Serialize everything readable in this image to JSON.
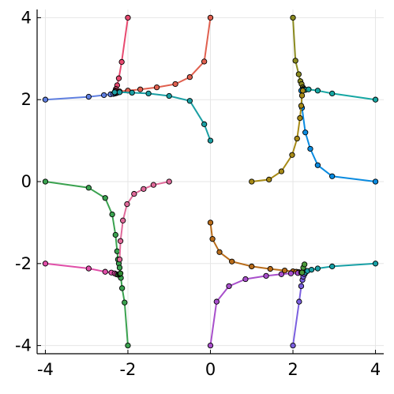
{
  "chart_data": {
    "type": "line",
    "title": "",
    "xlabel": "",
    "ylabel": "",
    "xlim": [
      -4.2,
      4.2
    ],
    "ylim": [
      -4.2,
      4.2
    ],
    "grid": true,
    "legend": "none",
    "x_ticks": [
      -4,
      -2,
      0,
      2,
      4
    ],
    "y_ticks": [
      -4,
      -2,
      0,
      2,
      4
    ],
    "x_tick_labels": [
      "-4",
      "-2",
      "0",
      "2",
      "4"
    ],
    "y_tick_labels": [
      "-4",
      "-2",
      "0",
      "2",
      "4"
    ],
    "series": [
      {
        "color": "#5f7fe0",
        "x": [
          -4.0,
          -2.95,
          -2.58,
          -2.42,
          -2.35,
          -2.31,
          -2.28,
          -2.26
        ],
        "y": [
          2.0,
          2.07,
          2.11,
          2.13,
          2.14,
          2.15,
          2.16,
          2.17
        ]
      },
      {
        "color": "#e0604f",
        "x": [
          -2.26,
          -2.25,
          -2.2,
          -2.0,
          -1.7,
          -1.3,
          -0.85,
          -0.5,
          -0.15,
          0.0
        ],
        "y": [
          2.17,
          2.18,
          2.2,
          2.22,
          2.25,
          2.3,
          2.38,
          2.55,
          2.93,
          4.0
        ]
      },
      {
        "color": "#e84a70",
        "x": [
          -2.0,
          -2.15,
          -2.22,
          -2.26,
          -2.29,
          -2.3,
          -2.31,
          -2.32
        ],
        "y": [
          4.0,
          2.92,
          2.52,
          2.35,
          2.26,
          2.22,
          2.2,
          2.18
        ]
      },
      {
        "color": "#1b9fa3",
        "x": [
          -2.32,
          -2.2,
          -1.9,
          -1.5,
          -1.0,
          -0.5,
          -0.15,
          0.0
        ],
        "y": [
          2.18,
          2.18,
          2.17,
          2.15,
          2.09,
          1.97,
          1.4,
          1.0
        ]
      },
      {
        "color": "#8a8a1f",
        "x": [
          2.0,
          2.06,
          2.14,
          2.18,
          2.21,
          2.24,
          2.26,
          2.28,
          2.3
        ],
        "y": [
          4.0,
          2.95,
          2.62,
          2.45,
          2.38,
          2.3,
          2.27,
          2.25,
          2.24
        ]
      },
      {
        "color": "#16a7a3",
        "x": [
          2.3,
          2.38,
          2.6,
          2.95,
          4.0
        ],
        "y": [
          2.24,
          2.25,
          2.22,
          2.15,
          2.0
        ]
      },
      {
        "color": "#0a8be0",
        "x": [
          2.22,
          2.2,
          2.22,
          2.3,
          2.42,
          2.6,
          2.95,
          4.0
        ],
        "y": [
          2.24,
          2.22,
          1.8,
          1.2,
          0.8,
          0.4,
          0.13,
          0.0
        ]
      },
      {
        "color": "#a78a16",
        "x": [
          2.24,
          2.22,
          2.2,
          2.17,
          2.1,
          1.98,
          1.72,
          1.42,
          1.0
        ],
        "y": [
          2.22,
          2.1,
          1.85,
          1.55,
          1.05,
          0.65,
          0.25,
          0.05,
          0.0
        ]
      },
      {
        "color": "#3aa24f",
        "x": [
          -4.0,
          -2.95,
          -2.55,
          -2.38,
          -2.3,
          -2.26,
          -2.24,
          -2.22,
          -2.2,
          -2.17,
          -2.14,
          -2.08,
          -2.0
        ],
        "y": [
          0.0,
          -0.15,
          -0.4,
          -0.8,
          -1.3,
          -1.7,
          -1.9,
          -2.0,
          -2.1,
          -2.35,
          -2.6,
          -2.95,
          -4.0
        ]
      },
      {
        "color": "#e06a9a",
        "x": [
          -2.2,
          -2.18,
          -2.12,
          -2.02,
          -1.85,
          -1.62,
          -1.38,
          -1.0
        ],
        "y": [
          -1.9,
          -1.45,
          -0.95,
          -0.55,
          -0.3,
          -0.18,
          -0.08,
          0.0
        ]
      },
      {
        "color": "#e04ea8",
        "x": [
          -4.0,
          -2.95,
          -2.55,
          -2.4,
          -2.32,
          -2.28,
          -2.24
        ],
        "y": [
          -2.0,
          -2.12,
          -2.2,
          -2.22,
          -2.24,
          -2.26,
          -2.27
        ]
      },
      {
        "color": "#2f8a2f",
        "x": [
          -2.24,
          -2.21,
          -2.19,
          -2.18
        ],
        "y": [
          -2.27,
          -2.26,
          -2.25,
          -2.24
        ]
      },
      {
        "color": "#b86c1a",
        "x": [
          0.0,
          0.05,
          0.22,
          0.52,
          1.0,
          1.45,
          1.8,
          2.0,
          2.08,
          2.14,
          2.2
        ],
        "y": [
          -1.0,
          -1.4,
          -1.72,
          -1.95,
          -2.07,
          -2.13,
          -2.17,
          -2.19,
          -2.2,
          -2.21,
          -2.22
        ]
      },
      {
        "color": "#a84fcb",
        "x": [
          0.0,
          0.15,
          0.45,
          0.85,
          1.35,
          1.72,
          1.95,
          2.12,
          2.2
        ],
        "y": [
          -4.0,
          -2.93,
          -2.55,
          -2.38,
          -2.3,
          -2.26,
          -2.24,
          -2.23,
          -2.22
        ]
      },
      {
        "color": "#7a5fdf",
        "x": [
          2.0,
          2.15,
          2.2,
          2.23,
          2.25,
          2.28,
          2.3
        ],
        "y": [
          -4.0,
          -2.93,
          -2.55,
          -2.4,
          -2.32,
          -2.26,
          -2.22
        ]
      },
      {
        "color": "#18a0a6",
        "x": [
          2.3,
          2.35,
          2.45,
          2.6,
          2.95,
          4.0
        ],
        "y": [
          -2.22,
          -2.18,
          -2.15,
          -2.12,
          -2.07,
          -2.0
        ]
      },
      {
        "color": "#4a9a3a",
        "x": [
          2.22,
          2.25,
          2.28
        ],
        "y": [
          -2.22,
          -2.1,
          -2.02
        ]
      }
    ]
  }
}
